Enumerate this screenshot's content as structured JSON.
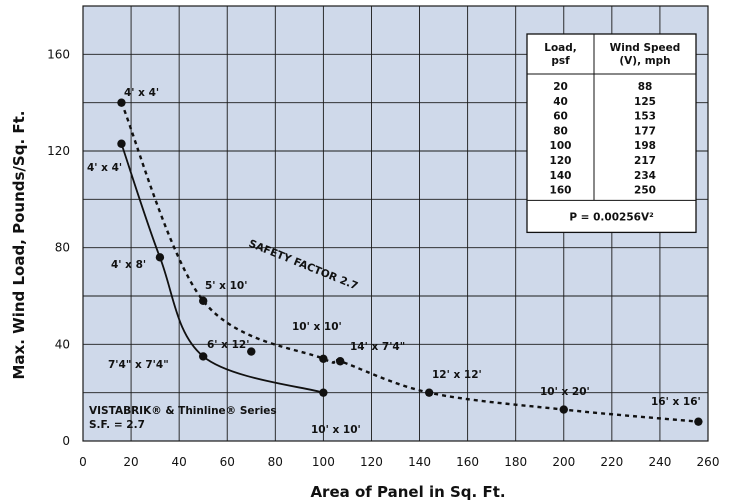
{
  "chart_data": {
    "type": "line",
    "xlabel": "Area of Panel in Sq. Ft.",
    "ylabel": "Max. Wind Load, Pounds/Sq. Ft.",
    "xlim": [
      0,
      260
    ],
    "ylim": [
      0,
      180
    ],
    "x_ticks": [
      "0",
      "20",
      "40",
      "60",
      "80",
      "100",
      "120",
      "140",
      "160",
      "180",
      "200",
      "220",
      "240",
      "260"
    ],
    "y_ticks": [
      "0",
      "40",
      "80",
      "120",
      "160"
    ],
    "grid": true,
    "series": [
      {
        "style": "solid",
        "points": [
          {
            "x": 16,
            "y": 123,
            "label": "4' x 4'"
          },
          {
            "x": 32,
            "y": 76,
            "label": "4' x 8'"
          },
          {
            "x": 50,
            "y": 35,
            "label": "7'4\" x 7'4\""
          },
          {
            "x": 100,
            "y": 20,
            "label": "10' x 10'"
          }
        ]
      },
      {
        "style": "dashed",
        "points": [
          {
            "x": 16,
            "y": 140,
            "label": "4' x 4'"
          },
          {
            "x": 50,
            "y": 58,
            "label": "5' x 10'"
          },
          {
            "x": 100,
            "y": 34,
            "label": "10' x 10'"
          },
          {
            "x": 107,
            "y": 33,
            "label": "14' x 7'4\""
          },
          {
            "x": 144,
            "y": 20,
            "label": "12' x 12'"
          },
          {
            "x": 200,
            "y": 13,
            "label": "10' x 20'"
          },
          {
            "x": 256,
            "y": 8,
            "label": "16' x 16'"
          }
        ]
      }
    ],
    "extra_points": [
      {
        "x": 70,
        "y": 37,
        "label": "6' x 12'"
      }
    ],
    "annotations": {
      "safety_factor": "SAFETY FACTOR 2.7",
      "series_note_line1": "VISTABRIK® & Thinline® Series",
      "series_note_line2": "S.F. = 2.7"
    },
    "table": {
      "headers": [
        [
          "Load,",
          "psf"
        ],
        [
          "Wind Speed",
          "(V), mph"
        ]
      ],
      "rows": [
        [
          "20",
          "88"
        ],
        [
          "40",
          "125"
        ],
        [
          "60",
          "153"
        ],
        [
          "80",
          "177"
        ],
        [
          "100",
          "198"
        ],
        [
          "120",
          "217"
        ],
        [
          "140",
          "234"
        ],
        [
          "160",
          "250"
        ]
      ],
      "formula": "P = 0.00256V²"
    },
    "colors": {
      "plot_background": "#cfd9ea",
      "grid": "#1a1a1a",
      "line": "#111111",
      "table_background": "#ffffff"
    }
  }
}
